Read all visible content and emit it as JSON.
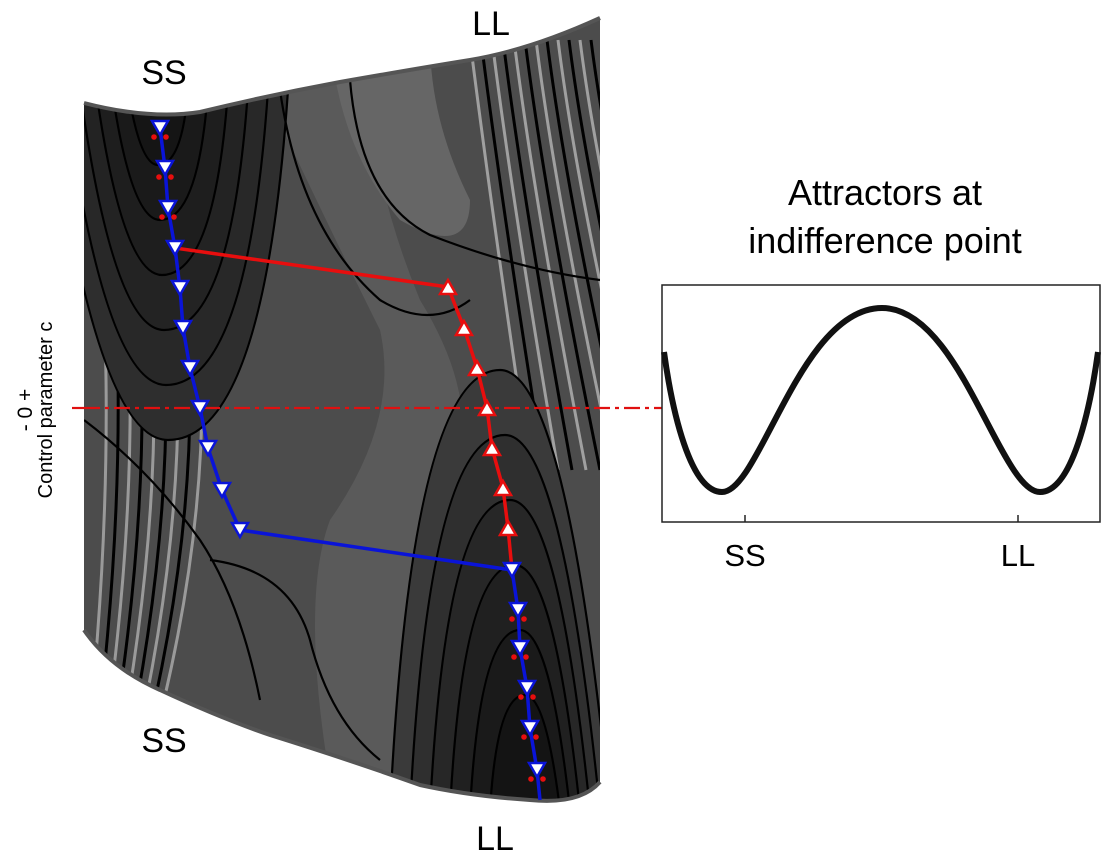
{
  "labels": {
    "ss_top": "SS",
    "ll_top": "LL",
    "ss_bottom": "SS",
    "ll_bottom": "LL",
    "axis_signs": "- 0 +",
    "axis_title": "Control parameter c",
    "inset_title_line1": "Attractors at",
    "inset_title_line2": "indifference point",
    "inset_ss": "SS",
    "inset_ll": "LL"
  },
  "colors": {
    "surface_dark": "#1c1c1c",
    "surface_mid": "#4a4a4a",
    "surface_light": "#7a7a7a",
    "contour": "#000000",
    "path_blue": "#0a14d8",
    "path_red": "#e80e0e",
    "marker_fill": "#ffffff",
    "indifference_line": "#e01010"
  },
  "paths": {
    "blue_marker": "triangle-down",
    "red_marker": "triangle-up"
  }
}
